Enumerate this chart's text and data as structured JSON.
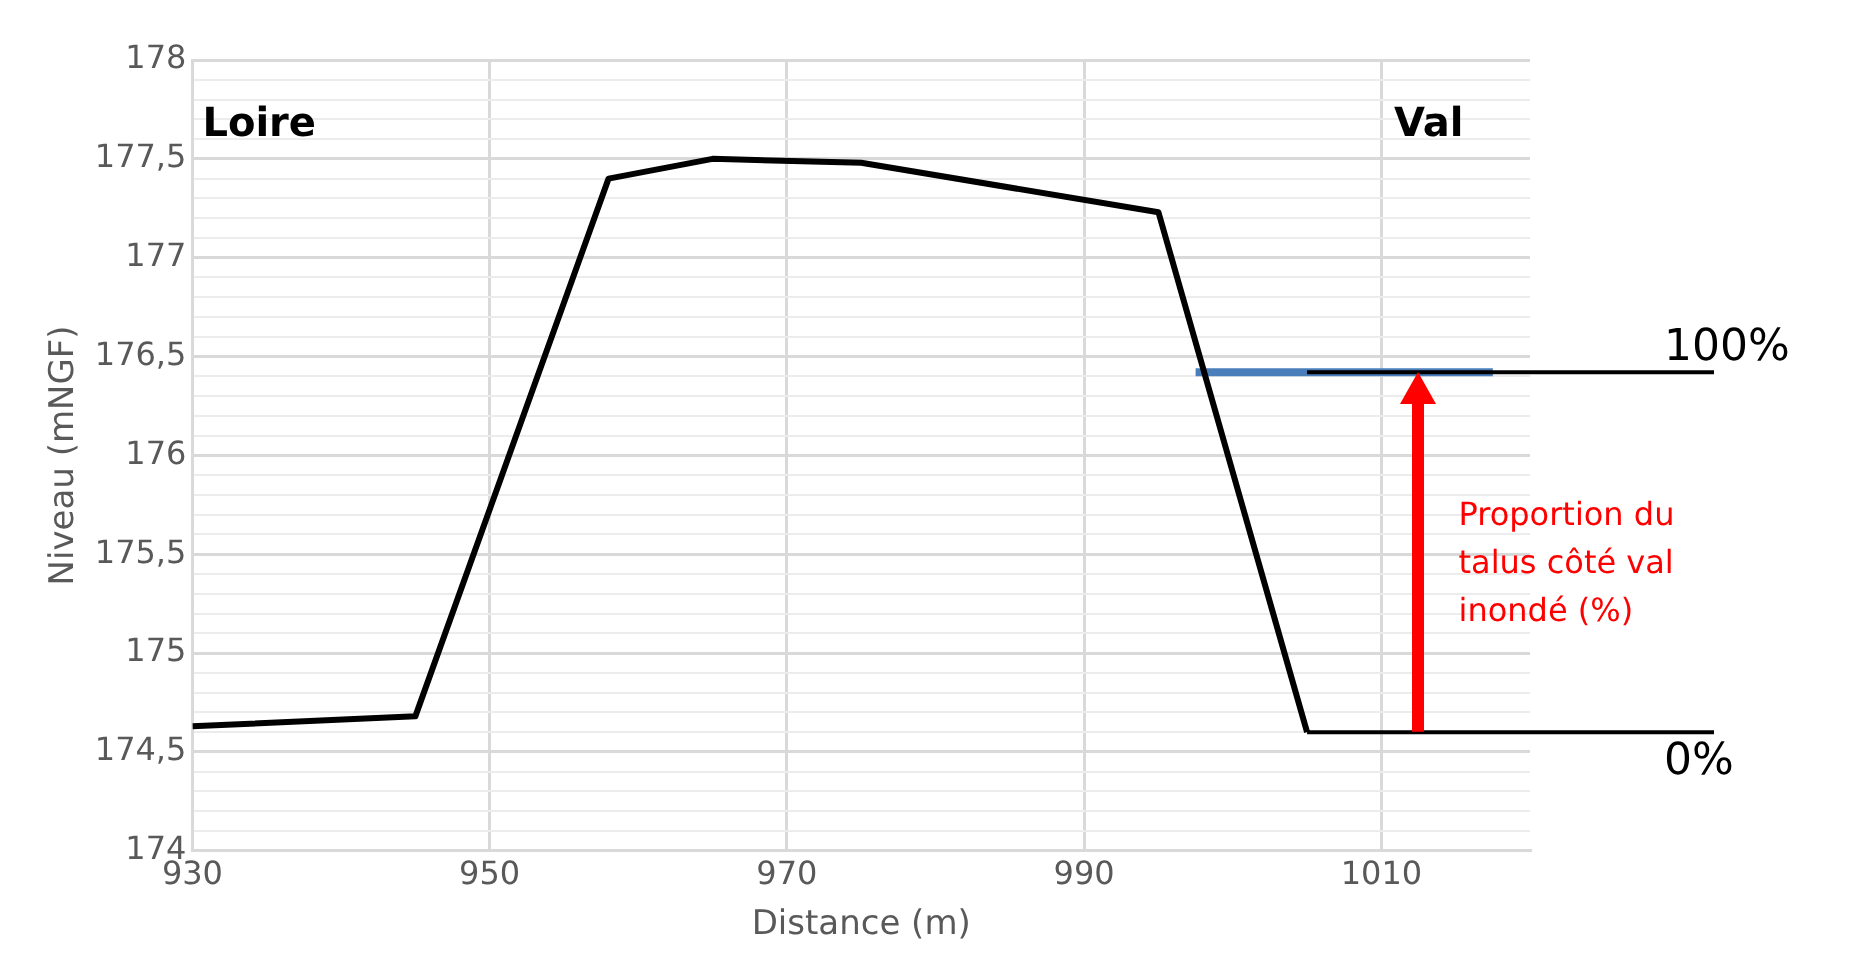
{
  "chart_data": {
    "type": "line",
    "xlabel": "Distance (m)",
    "ylabel": "Niveau (mNGF)",
    "xlim": [
      930,
      1020
    ],
    "xticks": [
      930,
      950,
      970,
      990,
      1010
    ],
    "ylim": [
      174,
      178
    ],
    "yticks": [
      174,
      {
        "value": 174.1,
        "label": null
      },
      {
        "value": 174.2,
        "label": null
      },
      {
        "value": 174.3,
        "label": null
      },
      {
        "value": 174.4,
        "label": null
      },
      {
        "value": 174.5,
        "label": "174,5"
      },
      {
        "value": 174.6,
        "label": null
      },
      {
        "value": 174.7,
        "label": null
      },
      {
        "value": 174.8,
        "label": null
      },
      {
        "value": 174.9,
        "label": null
      },
      175,
      {
        "value": 175.1,
        "label": null
      },
      {
        "value": 175.2,
        "label": null
      },
      {
        "value": 175.3,
        "label": null
      },
      {
        "value": 175.4,
        "label": null
      },
      {
        "value": 175.5,
        "label": "175,5"
      },
      {
        "value": 175.6,
        "label": null
      },
      {
        "value": 175.7,
        "label": null
      },
      {
        "value": 175.8,
        "label": null
      },
      {
        "value": 175.9,
        "label": null
      },
      176,
      {
        "value": 176.1,
        "label": null
      },
      {
        "value": 176.2,
        "label": null
      },
      {
        "value": 176.3,
        "label": null
      },
      {
        "value": 176.4,
        "label": null
      },
      {
        "value": 176.5,
        "label": "176,5"
      },
      {
        "value": 176.6,
        "label": null
      },
      {
        "value": 176.7,
        "label": null
      },
      {
        "value": 176.8,
        "label": null
      },
      {
        "value": 176.9,
        "label": null
      },
      177,
      {
        "value": 177.1,
        "label": null
      },
      {
        "value": 177.2,
        "label": null
      },
      {
        "value": 177.3,
        "label": null
      },
      {
        "value": 177.4,
        "label": null
      },
      {
        "value": 177.5,
        "label": "177,5"
      },
      {
        "value": 177.6,
        "label": null
      },
      {
        "value": 177.7,
        "label": null
      },
      {
        "value": 177.8,
        "label": null
      },
      {
        "value": 177.9,
        "label": null
      },
      178
    ],
    "series": [
      {
        "color": "#000000",
        "x": [
          930,
          945,
          958,
          965,
          975,
          995,
          1005
        ],
        "values": [
          174.63,
          174.68,
          177.4,
          177.5,
          177.48,
          177.23,
          174.6
        ]
      },
      {
        "color": "#4a7ebb",
        "x": [
          997.5,
          1017.5
        ],
        "values": [
          176.42,
          176.42
        ]
      }
    ],
    "ref_lines": [
      {
        "axis": "y",
        "value": 176.42,
        "color": "#000000"
      },
      {
        "axis": "y",
        "value": 174.6,
        "color": "#000000"
      }
    ],
    "annotations": [
      "Loire",
      "Val",
      "Proportion du talus côté val inondé (%)",
      "100%",
      "0%"
    ],
    "grid": true,
    "legend": false,
    "marker": "none",
    "line_style": "solid"
  }
}
